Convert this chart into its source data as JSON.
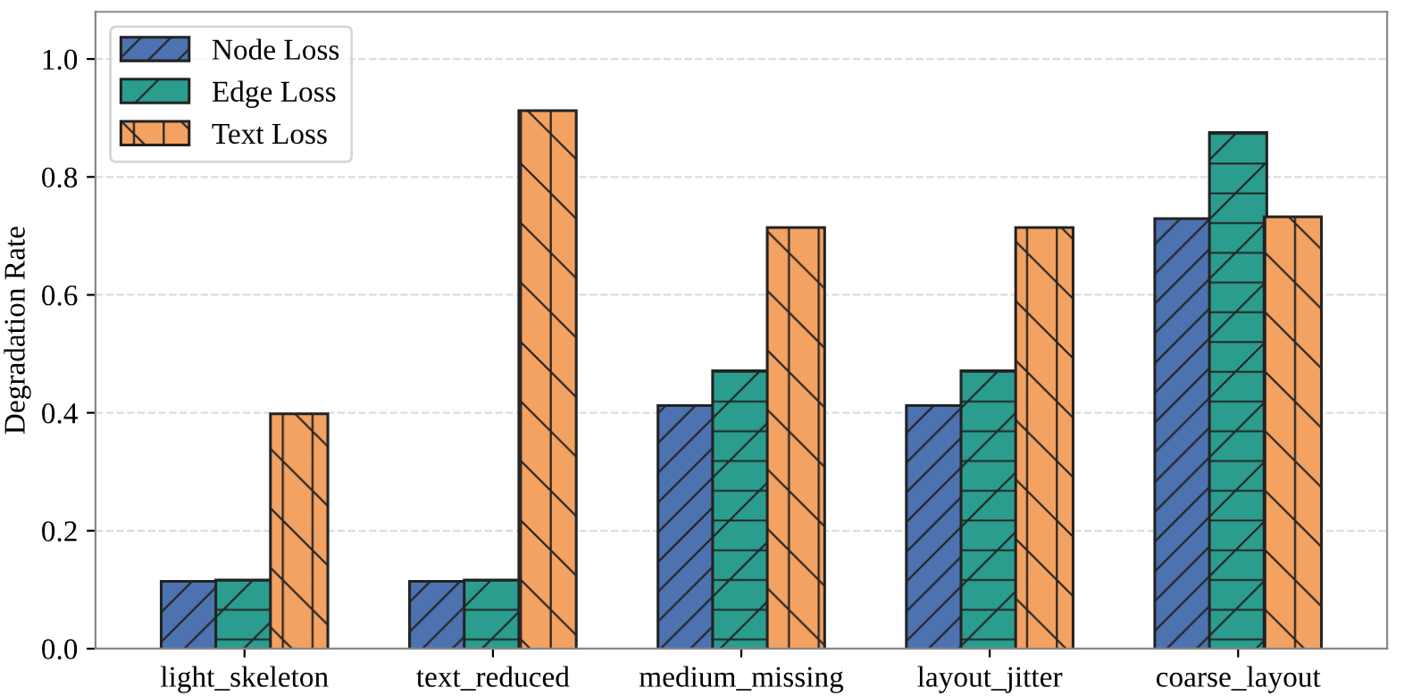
{
  "chart_data": {
    "type": "bar",
    "ylabel": "Degradation Rate",
    "categories": [
      "light_skeleton",
      "text_reduced",
      "medium_missing",
      "layout_jitter",
      "coarse_layout"
    ],
    "series": [
      {
        "name": "Node Loss",
        "color": "#4c72b0",
        "values": [
          0.112,
          0.112,
          0.41,
          0.41,
          0.727
        ]
      },
      {
        "name": "Edge Loss",
        "color": "#2a9d8f",
        "values": [
          0.114,
          0.114,
          0.469,
          0.469,
          0.873
        ]
      },
      {
        "name": "Text Loss",
        "color": "#f4a261",
        "values": [
          0.396,
          0.91,
          0.712,
          0.712,
          0.73
        ]
      }
    ],
    "ylim": [
      0,
      1.08
    ],
    "yticks": [
      {
        "value": 0,
        "label": "0.0"
      },
      {
        "value": 0.2,
        "label": "0.2"
      },
      {
        "value": 0.4,
        "label": "0.4"
      },
      {
        "value": 0.6,
        "label": "0.6"
      },
      {
        "value": 0.8,
        "label": "0.8"
      },
      {
        "value": 1.0,
        "label": "1.0"
      }
    ],
    "grid": "y",
    "legend": "top left"
  }
}
